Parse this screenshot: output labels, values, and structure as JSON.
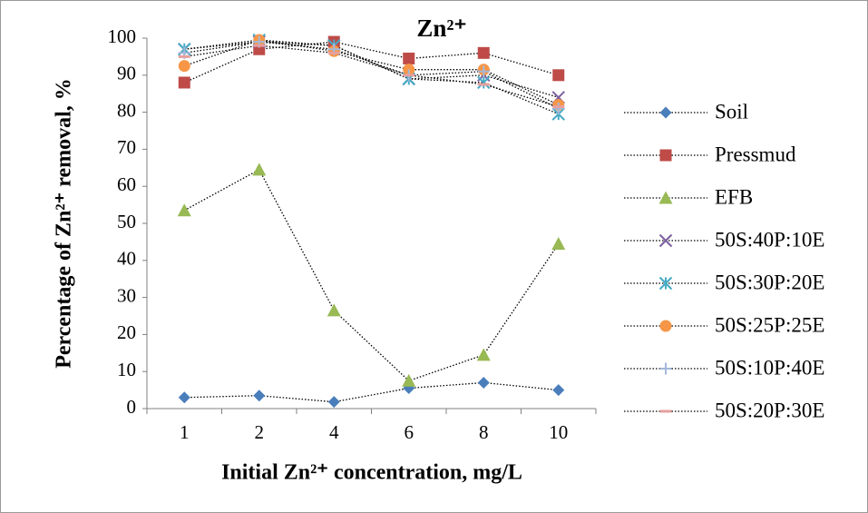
{
  "chart_data": {
    "type": "line",
    "title": "Zn²⁺",
    "x_label": "Initial Zn²⁺ concentration, mg/L",
    "y_label": "Percentage of Zn²⁺ removal, %",
    "categories": [
      "1",
      "2",
      "4",
      "6",
      "8",
      "10"
    ],
    "ylim": [
      0,
      100
    ],
    "yticks": [
      0,
      10,
      20,
      30,
      40,
      50,
      60,
      70,
      80,
      90,
      100
    ],
    "legend": "right",
    "series": [
      {
        "name": "Soil",
        "color": "#4a7ebb",
        "marker": "diamond",
        "values": [
          3,
          3.5,
          1.8,
          5.5,
          7,
          5
        ]
      },
      {
        "name": "Pressmud",
        "color": "#be4b48",
        "marker": "square",
        "values": [
          88,
          97,
          99,
          94.5,
          96,
          90
        ]
      },
      {
        "name": "EFB",
        "color": "#98b954",
        "marker": "triangle",
        "values": [
          53.5,
          64.5,
          26.5,
          7.5,
          14.5,
          44.5
        ]
      },
      {
        "name": "50S:40P:10E",
        "color": "#7d60a0",
        "marker": "x",
        "values": [
          97,
          99,
          98,
          89,
          90,
          84
        ]
      },
      {
        "name": "50S:30P:20E",
        "color": "#46aac5",
        "marker": "asterisk",
        "values": [
          97,
          99.5,
          98,
          89,
          88,
          79.5
        ]
      },
      {
        "name": "50S:25P:25E",
        "color": "#f79646",
        "marker": "circle",
        "values": [
          92.5,
          99.5,
          96.5,
          91.5,
          91.5,
          82
        ]
      },
      {
        "name": "50S:10P:40E",
        "color": "#a5b8da",
        "marker": "plus",
        "values": [
          96,
          99,
          97,
          90,
          91,
          81
        ]
      },
      {
        "name": "50S:20P:30E",
        "color": "#e6a09e",
        "marker": "dash",
        "values": [
          95,
          98,
          96,
          90,
          87.5,
          81.5
        ]
      }
    ]
  }
}
